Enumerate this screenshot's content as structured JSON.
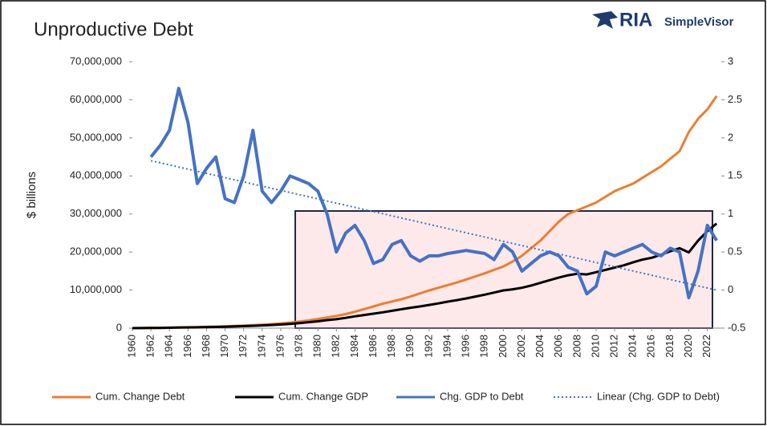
{
  "chart_data": {
    "type": "line",
    "title": "Unproductive Debt",
    "logo": {
      "main": "RIA",
      "sub": "SimpleVisor"
    },
    "ylabel": "$ billions",
    "x": [
      1960,
      1961,
      1962,
      1963,
      1964,
      1965,
      1966,
      1967,
      1968,
      1969,
      1970,
      1971,
      1972,
      1973,
      1974,
      1975,
      1976,
      1977,
      1978,
      1979,
      1980,
      1981,
      1982,
      1983,
      1984,
      1985,
      1986,
      1987,
      1988,
      1989,
      1990,
      1991,
      1992,
      1993,
      1994,
      1995,
      1996,
      1997,
      1998,
      1999,
      2000,
      2001,
      2002,
      2003,
      2004,
      2005,
      2006,
      2007,
      2008,
      2009,
      2010,
      2011,
      2012,
      2013,
      2014,
      2015,
      2016,
      2017,
      2018,
      2019,
      2020,
      2021,
      2022,
      2023
    ],
    "xlim": [
      1960,
      2023.5
    ],
    "xticks": [
      1960,
      1962,
      1964,
      1966,
      1968,
      1970,
      1972,
      1974,
      1976,
      1978,
      1980,
      1982,
      1984,
      1986,
      1988,
      1990,
      1992,
      1994,
      1996,
      1998,
      2000,
      2002,
      2004,
      2006,
      2008,
      2010,
      2012,
      2014,
      2016,
      2018,
      2020,
      2022
    ],
    "ylim": [
      0,
      70000000
    ],
    "yticks": [
      0,
      {
        "value": 10000000,
        "label": "10,000,000"
      },
      {
        "value": 20000000,
        "label": "20,000,000"
      },
      {
        "value": 30000000,
        "label": "30,000,000"
      },
      {
        "value": 40000000,
        "label": "40,000,000"
      },
      {
        "value": 50000000,
        "label": "50,000,000"
      },
      {
        "value": 60000000,
        "label": "60,000,000"
      },
      {
        "value": 70000000,
        "label": "70,000,000"
      }
    ],
    "y2lim": [
      -0.5,
      3
    ],
    "y2ticks": [
      -0.5,
      0,
      0.5,
      1,
      1.5,
      2,
      2.5,
      3
    ],
    "series": [
      {
        "name": "Cum. Change Debt",
        "color": "#ed7d31",
        "axis": "y",
        "values": [
          0,
          20000,
          50000,
          90000,
          130000,
          180000,
          230000,
          280000,
          340000,
          400000,
          470000,
          560000,
          660000,
          780000,
          900000,
          1050000,
          1250000,
          1450000,
          1700000,
          2000000,
          2400000,
          2800000,
          3200000,
          3700000,
          4300000,
          5000000,
          5700000,
          6400000,
          7000000,
          7600000,
          8300000,
          9100000,
          9900000,
          10600000,
          11300000,
          12000000,
          12800000,
          13600000,
          14400000,
          15300000,
          16200000,
          17500000,
          19000000,
          21000000,
          23000000,
          25500000,
          28000000,
          30000000,
          31000000,
          32000000,
          33000000,
          34500000,
          36000000,
          37000000,
          38000000,
          39500000,
          41000000,
          42500000,
          44500000,
          46500000,
          51500000,
          55000000,
          57500000,
          61000000
        ]
      },
      {
        "name": "Cum. Change GDP",
        "color": "#000000",
        "axis": "y",
        "values": [
          0,
          20000,
          40000,
          70000,
          100000,
          140000,
          180000,
          220000,
          270000,
          320000,
          380000,
          450000,
          530000,
          620000,
          720000,
          830000,
          950000,
          1100000,
          1300000,
          1550000,
          1800000,
          2100000,
          2350000,
          2700000,
          3100000,
          3450000,
          3800000,
          4150000,
          4550000,
          4950000,
          5350000,
          5700000,
          6100000,
          6500000,
          6950000,
          7350000,
          7800000,
          8300000,
          8800000,
          9350000,
          9900000,
          10200000,
          10600000,
          11200000,
          11900000,
          12600000,
          13300000,
          13900000,
          14300000,
          14100000,
          14700000,
          15300000,
          15900000,
          16500000,
          17300000,
          18000000,
          18500000,
          19300000,
          20200000,
          21000000,
          19900000,
          23000000,
          25500000,
          27500000
        ]
      },
      {
        "name": "Chg. GDP to Debt",
        "color": "#4472c4",
        "axis": "y2",
        "values": [
          null,
          null,
          1.75,
          1.9,
          2.1,
          2.65,
          2.2,
          1.4,
          1.6,
          1.75,
          1.2,
          1.15,
          1.5,
          2.1,
          1.3,
          1.15,
          1.3,
          1.5,
          1.45,
          1.4,
          1.3,
          1.0,
          0.5,
          0.75,
          0.85,
          0.65,
          0.35,
          0.4,
          0.6,
          0.65,
          0.45,
          0.38,
          0.45,
          0.45,
          0.48,
          0.5,
          0.52,
          0.5,
          0.48,
          0.4,
          0.6,
          0.5,
          0.25,
          0.35,
          0.45,
          0.5,
          0.45,
          0.3,
          0.25,
          -0.05,
          0.05,
          0.5,
          0.45,
          0.5,
          0.55,
          0.6,
          0.5,
          0.45,
          0.55,
          0.5,
          -0.1,
          0.25,
          0.85,
          0.65
        ]
      },
      {
        "name": "Linear (Chg. GDP to Debt)",
        "color": "#4472c4",
        "axis": "y2",
        "dashed": true,
        "x": [
          1962,
          2023
        ],
        "values": [
          1.7,
          0
        ]
      }
    ]
  }
}
